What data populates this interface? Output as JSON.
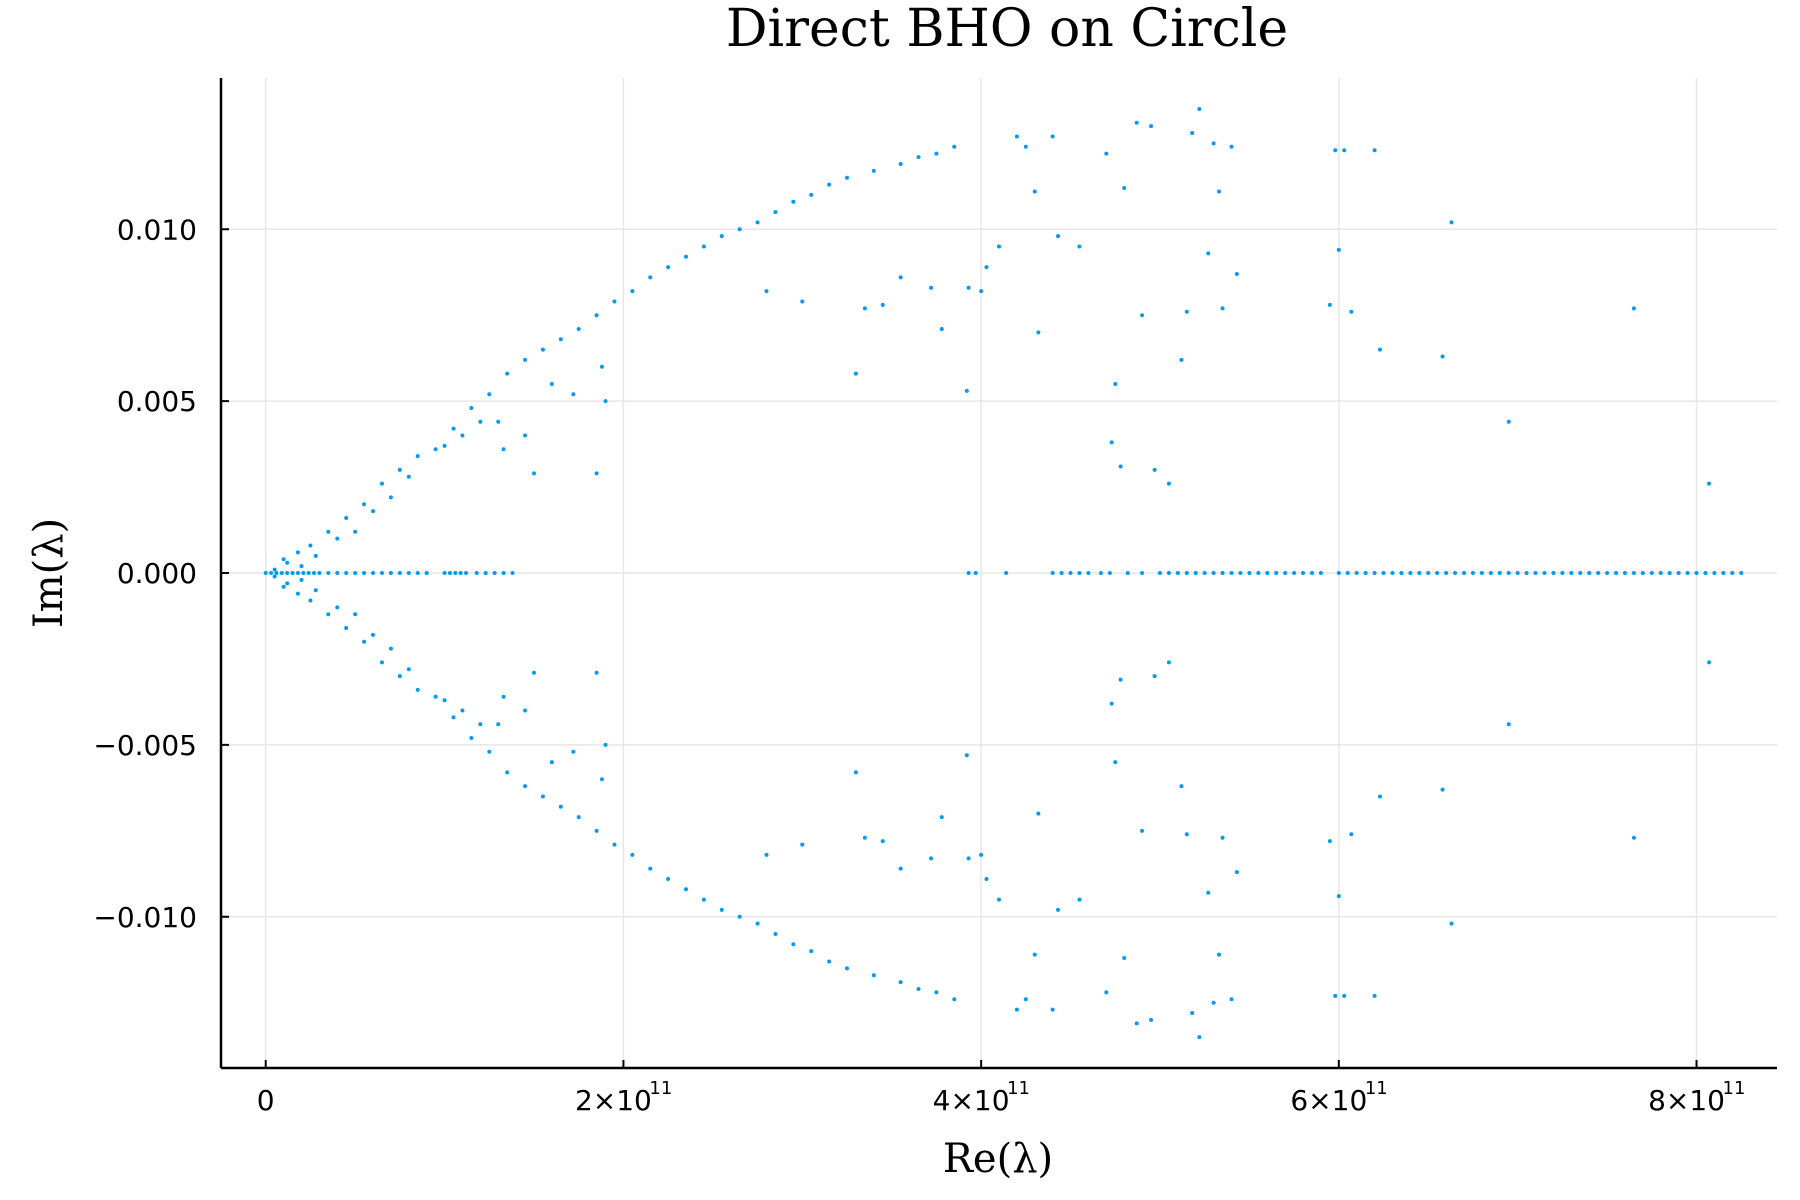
{
  "chart_data": {
    "type": "scatter",
    "title": "Direct BHO on Circle",
    "xlabel": "Re(λ)",
    "ylabel": "Im(λ)",
    "xlim": [
      -25000000000,
      845000000000
    ],
    "ylim": [
      -0.0144,
      0.0144
    ],
    "x_ticks": [
      {
        "value": 0,
        "mantissa": "0",
        "exponent": ""
      },
      {
        "value": 200000000000,
        "mantissa": "2×10",
        "exponent": "11"
      },
      {
        "value": 400000000000,
        "mantissa": "4×10",
        "exponent": "11"
      },
      {
        "value": 600000000000,
        "mantissa": "6×10",
        "exponent": "11"
      },
      {
        "value": 800000000000,
        "mantissa": "8×10",
        "exponent": "11"
      }
    ],
    "y_ticks": [
      {
        "value": 0.01,
        "label": "0.010"
      },
      {
        "value": 0.005,
        "label": "0.005"
      },
      {
        "value": 0.0,
        "label": "0.000"
      },
      {
        "value": -0.005,
        "label": "−0.005"
      },
      {
        "value": -0.01,
        "label": "−0.010"
      }
    ],
    "grid": true,
    "legend": "none",
    "color": "#009af9",
    "series": [
      {
        "points": [
          [
            10000000000,
            0.0004
          ],
          [
            18000000000,
            0.0006
          ],
          [
            25000000000,
            0.0008
          ],
          [
            35000000000,
            0.0012
          ],
          [
            45000000000,
            0.0016
          ],
          [
            55000000000,
            0.002
          ],
          [
            65000000000,
            0.0026
          ],
          [
            75000000000,
            0.003
          ],
          [
            85000000000,
            0.0034
          ],
          [
            95000000000,
            0.0036
          ],
          [
            105000000000,
            0.0042
          ],
          [
            115000000000,
            0.0048
          ],
          [
            125000000000,
            0.0052
          ],
          [
            135000000000,
            0.0058
          ],
          [
            145000000000,
            0.0062
          ],
          [
            155000000000,
            0.0065
          ],
          [
            165000000000,
            0.0068
          ],
          [
            175000000000,
            0.0071
          ],
          [
            185000000000,
            0.0075
          ],
          [
            195000000000,
            0.0079
          ],
          [
            205000000000,
            0.0082
          ],
          [
            215000000000,
            0.0086
          ],
          [
            225000000000,
            0.0089
          ],
          [
            235000000000,
            0.0092
          ],
          [
            245000000000,
            0.0095
          ],
          [
            255000000000,
            0.0098
          ],
          [
            265000000000,
            0.01
          ],
          [
            275000000000,
            0.0102
          ],
          [
            285000000000,
            0.0105
          ],
          [
            295000000000,
            0.0108
          ],
          [
            305000000000,
            0.011
          ],
          [
            315000000000,
            0.0113
          ],
          [
            325000000000,
            0.0115
          ],
          [
            340000000000,
            0.0117
          ],
          [
            355000000000,
            0.0119
          ],
          [
            365000000000,
            0.0121
          ],
          [
            375000000000,
            0.0122
          ],
          [
            385000000000,
            0.0124
          ],
          [
            100000000000,
            0.0037
          ],
          [
            110000000000,
            0.004
          ],
          [
            130000000000,
            0.0044
          ],
          [
            145000000000,
            0.004
          ],
          [
            160000000000,
            0.0055
          ],
          [
            172000000000,
            0.0052
          ],
          [
            188000000000,
            0.006
          ],
          [
            190000000000,
            0.005
          ],
          [
            40000000000,
            0.001
          ],
          [
            60000000000,
            0.0018
          ],
          [
            70000000000,
            0.0022
          ],
          [
            80000000000,
            0.0028
          ],
          [
            120000000000,
            0.0044
          ],
          [
            133000000000,
            0.0036
          ],
          [
            150000000000,
            0.0029
          ],
          [
            185000000000,
            0.0029
          ],
          [
            280000000000,
            0.0082
          ],
          [
            300000000000,
            0.0079
          ],
          [
            330000000000,
            0.0058
          ],
          [
            335000000000,
            0.0077
          ],
          [
            345000000000,
            0.0078
          ],
          [
            355000000000,
            0.0086
          ],
          [
            372000000000,
            0.0083
          ],
          [
            378000000000,
            0.0071
          ],
          [
            392000000000,
            0.0053
          ],
          [
            393000000000,
            0.0083
          ],
          [
            400000000000,
            0.0082
          ],
          [
            403000000000,
            0.0089
          ],
          [
            410000000000,
            0.0095
          ],
          [
            420000000000,
            0.0127
          ],
          [
            425000000000,
            0.0124
          ],
          [
            430000000000,
            0.0111
          ],
          [
            432000000000,
            0.007
          ],
          [
            440000000000,
            0.0127
          ],
          [
            443000000000,
            0.0098
          ],
          [
            455000000000,
            0.0095
          ],
          [
            470000000000,
            0.0122
          ],
          [
            473000000000,
            0.0038
          ],
          [
            475000000000,
            0.0055
          ],
          [
            478000000000,
            0.0031
          ],
          [
            480000000000,
            0.0112
          ],
          [
            487000000000,
            0.0131
          ],
          [
            490000000000,
            0.0075
          ],
          [
            495000000000,
            0.013
          ],
          [
            497000000000,
            0.003
          ],
          [
            505000000000,
            0.0026
          ],
          [
            512000000000,
            0.0062
          ],
          [
            515000000000,
            0.0076
          ],
          [
            518000000000,
            0.0128
          ],
          [
            522000000000,
            0.0135
          ],
          [
            527000000000,
            0.0093
          ],
          [
            530000000000,
            0.0125
          ],
          [
            533000000000,
            0.0111
          ],
          [
            535000000000,
            0.0077
          ],
          [
            540000000000,
            0.0124
          ],
          [
            543000000000,
            0.0087
          ],
          [
            595000000000,
            0.0078
          ],
          [
            598000000000,
            0.0123
          ],
          [
            600000000000,
            0.0094
          ],
          [
            603000000000,
            0.0123
          ],
          [
            607000000000,
            0.0076
          ],
          [
            620000000000,
            0.0123
          ],
          [
            623000000000,
            0.0065
          ],
          [
            658000000000,
            0.0063
          ],
          [
            663000000000,
            0.0102
          ],
          [
            695000000000,
            0.0044
          ],
          [
            765000000000,
            0.0077
          ],
          [
            807000000000,
            0.0026
          ],
          [
            5000000000,
            0.0001
          ],
          [
            12000000000,
            0.0003
          ],
          [
            20000000000,
            0.0002
          ],
          [
            28000000000,
            0.0005
          ],
          [
            50000000000,
            0.0012
          ]
        ],
        "real_axis_points_x": [
          0,
          3000000000,
          6000000000,
          9000000000,
          12000000000,
          15000000000,
          18000000000,
          21000000000,
          24000000000,
          27000000000,
          30000000000,
          35000000000,
          40000000000,
          45000000000,
          50000000000,
          55000000000,
          60000000000,
          65000000000,
          70000000000,
          75000000000,
          80000000000,
          85000000000,
          90000000000,
          100000000000,
          103000000000,
          106000000000,
          109000000000,
          112000000000,
          118000000000,
          123000000000,
          128000000000,
          133000000000,
          138000000000,
          393000000000,
          397000000000,
          414000000000,
          440000000000,
          445000000000,
          450000000000,
          455000000000,
          460000000000,
          467000000000,
          472000000000,
          482000000000,
          490000000000,
          500000000000,
          505000000000,
          510000000000,
          515000000000,
          520000000000,
          525000000000,
          530000000000,
          535000000000,
          540000000000,
          545000000000,
          550000000000,
          555000000000,
          560000000000,
          565000000000,
          570000000000,
          575000000000,
          580000000000,
          585000000000,
          590000000000,
          600000000000,
          605000000000,
          610000000000,
          615000000000,
          620000000000,
          625000000000,
          630000000000,
          635000000000,
          640000000000,
          645000000000,
          650000000000,
          655000000000,
          660000000000,
          665000000000,
          670000000000,
          675000000000,
          680000000000,
          685000000000,
          690000000000,
          695000000000,
          700000000000,
          705000000000,
          710000000000,
          715000000000,
          720000000000,
          725000000000,
          730000000000,
          735000000000,
          740000000000,
          745000000000,
          750000000000,
          755000000000,
          760000000000,
          765000000000,
          770000000000,
          775000000000,
          780000000000,
          785000000000,
          790000000000,
          795000000000,
          800000000000,
          805000000000,
          810000000000,
          815000000000,
          820000000000,
          825000000000
        ],
        "symmetric_about_real_axis": true
      }
    ]
  }
}
